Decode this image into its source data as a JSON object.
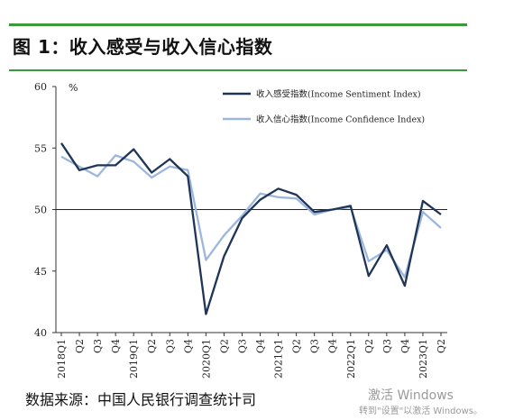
{
  "header": {
    "title": "图 1：收入感受与收入信心指数"
  },
  "footer": {
    "source": "数据来源：中国人民银行调查统计司",
    "watermark_line1": "激活 Windows",
    "watermark_line2": "转到\"设置\"以激活 Windows。"
  },
  "colors": {
    "rule": "#3a9a3a",
    "series_dark": "#1f3557",
    "series_light": "#9cb6dc"
  },
  "chart_data": {
    "type": "line",
    "ylabel": "%",
    "ylim": [
      40,
      60
    ],
    "yticks": [
      40,
      45,
      50,
      55,
      60
    ],
    "reference_line": 50,
    "legend_position": "top-right",
    "categories": [
      "2018Q1",
      "Q2",
      "Q3",
      "Q4",
      "2019Q1",
      "Q2",
      "Q3",
      "Q4",
      "2020Q1",
      "Q2",
      "Q3",
      "Q4",
      "2021Q1",
      "Q2",
      "Q3",
      "Q4",
      "2022Q1",
      "Q2",
      "Q3",
      "Q4",
      "2023Q1",
      "Q2"
    ],
    "series": [
      {
        "name": "收入感受指数(Income Sentiment Index)",
        "values": [
          55.4,
          53.2,
          53.6,
          53.6,
          54.9,
          53.0,
          54.1,
          52.7,
          41.5,
          46.2,
          49.3,
          50.8,
          51.7,
          51.2,
          49.8,
          50.0,
          50.3,
          44.6,
          47.1,
          43.8,
          50.7,
          49.6
        ]
      },
      {
        "name": "收入信心指数(Income Confidence Index)",
        "values": [
          54.3,
          53.5,
          52.7,
          54.4,
          53.9,
          52.6,
          53.5,
          53.2,
          45.9,
          47.9,
          49.5,
          51.3,
          51.0,
          50.9,
          49.6,
          50.0,
          50.2,
          45.8,
          46.7,
          44.5,
          49.8,
          48.5
        ]
      }
    ]
  }
}
